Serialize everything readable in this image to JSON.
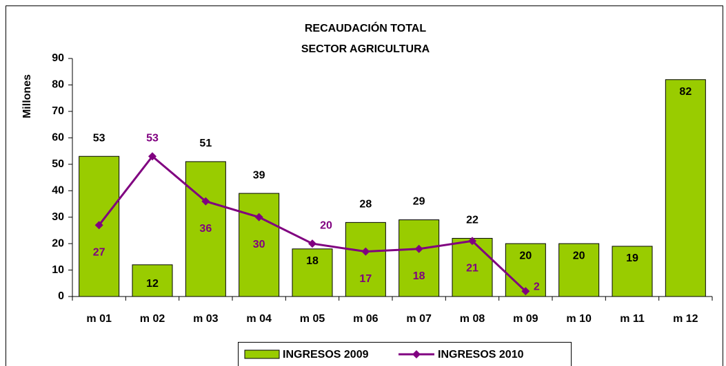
{
  "chart_data": {
    "type": "bar_line",
    "title": "RECAUDACIÓN TOTAL",
    "subtitle": "SECTOR AGRICULTURA",
    "y_label": "Millones",
    "categories": [
      "m 01",
      "m 02",
      "m 03",
      "m 04",
      "m 05",
      "m 06",
      "m 07",
      "m 08",
      "m 09",
      "m 10",
      "m 11",
      "m 12"
    ],
    "series": [
      {
        "name": "INGRESOS 2009",
        "type": "bar",
        "color": "#99cc00",
        "values": [
          53,
          12,
          51,
          39,
          18,
          28,
          29,
          22,
          20,
          20,
          19,
          82
        ]
      },
      {
        "name": "INGRESOS 2010",
        "type": "line",
        "color": "#800080",
        "values": [
          27,
          53,
          36,
          30,
          20,
          17,
          18,
          21,
          2,
          null,
          null,
          null
        ]
      }
    ],
    "ylim": [
      0,
      90
    ],
    "yticks": [
      0,
      10,
      20,
      30,
      40,
      50,
      60,
      70,
      80,
      90
    ],
    "legend": "bottom"
  }
}
